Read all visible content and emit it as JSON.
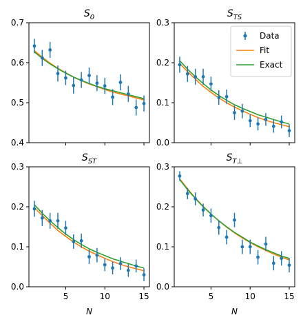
{
  "chart_data": [
    {
      "type": "scatter",
      "title": "S_0",
      "title_main": "S",
      "title_sub": "0",
      "xlabel": "",
      "ylabel": "",
      "xlim": [
        0.3,
        15.7
      ],
      "ylim": [
        0.4,
        0.7
      ],
      "yticks": [
        "0.4",
        "0.5",
        "0.6",
        "0.7"
      ],
      "xticks": [
        5,
        10,
        15
      ],
      "show_xtick_labels": false,
      "show_legend": false,
      "series": [
        {
          "name": "Data",
          "kind": "errorbar",
          "x": [
            1,
            2,
            3,
            4,
            5,
            6,
            7,
            8,
            9,
            10,
            11,
            12,
            13,
            14,
            15
          ],
          "y": [
            0.642,
            0.612,
            0.632,
            0.573,
            0.562,
            0.543,
            0.557,
            0.568,
            0.549,
            0.542,
            0.514,
            0.551,
            0.522,
            0.488,
            0.498
          ],
          "err": [
            0.018,
            0.02,
            0.02,
            0.02,
            0.018,
            0.02,
            0.02,
            0.02,
            0.02,
            0.02,
            0.02,
            0.02,
            0.02,
            0.02,
            0.02
          ]
        },
        {
          "name": "Fit",
          "kind": "line",
          "x": [
            1,
            2,
            3,
            4,
            5,
            6,
            7,
            8,
            9,
            10,
            11,
            12,
            13,
            14,
            15
          ],
          "y": [
            0.63,
            0.614,
            0.599,
            0.586,
            0.575,
            0.564,
            0.555,
            0.547,
            0.54,
            0.533,
            0.527,
            0.522,
            0.517,
            0.512,
            0.507
          ]
        },
        {
          "name": "Exact",
          "kind": "line",
          "x": [
            1,
            2,
            3,
            4,
            5,
            6,
            7,
            8,
            9,
            10,
            11,
            12,
            13,
            14,
            15
          ],
          "y": [
            0.627,
            0.611,
            0.597,
            0.585,
            0.574,
            0.564,
            0.556,
            0.548,
            0.541,
            0.535,
            0.53,
            0.525,
            0.52,
            0.515,
            0.51
          ]
        }
      ]
    },
    {
      "type": "scatter",
      "title": "S_TS",
      "title_main": "S",
      "title_sub": "TS",
      "xlabel": "",
      "ylabel": "",
      "xlim": [
        0.3,
        15.7
      ],
      "ylim": [
        0.0,
        0.3
      ],
      "yticks": [
        "0.0",
        "0.1",
        "0.2",
        "0.3"
      ],
      "xticks": [
        5,
        10,
        15
      ],
      "show_xtick_labels": false,
      "show_legend": true,
      "series": [
        {
          "name": "Data",
          "kind": "errorbar",
          "x": [
            1,
            2,
            3,
            4,
            5,
            6,
            7,
            8,
            9,
            10,
            11,
            12,
            13,
            14,
            15
          ],
          "y": [
            0.195,
            0.172,
            0.165,
            0.165,
            0.147,
            0.113,
            0.115,
            0.075,
            0.079,
            0.055,
            0.047,
            0.058,
            0.041,
            0.052,
            0.03
          ],
          "err": [
            0.02,
            0.02,
            0.02,
            0.02,
            0.018,
            0.018,
            0.018,
            0.018,
            0.018,
            0.016,
            0.016,
            0.016,
            0.016,
            0.016,
            0.016
          ]
        },
        {
          "name": "Fit",
          "kind": "line",
          "x": [
            1,
            2,
            3,
            4,
            5,
            6,
            7,
            8,
            9,
            10,
            11,
            12,
            13,
            14,
            15
          ],
          "y": [
            0.198,
            0.178,
            0.159,
            0.141,
            0.126,
            0.112,
            0.1,
            0.089,
            0.08,
            0.071,
            0.063,
            0.056,
            0.05,
            0.045,
            0.04
          ]
        },
        {
          "name": "Exact",
          "kind": "line",
          "x": [
            1,
            2,
            3,
            4,
            5,
            6,
            7,
            8,
            9,
            10,
            11,
            12,
            13,
            14,
            15
          ],
          "y": [
            0.205,
            0.184,
            0.165,
            0.148,
            0.132,
            0.118,
            0.106,
            0.095,
            0.086,
            0.078,
            0.07,
            0.064,
            0.058,
            0.052,
            0.047
          ]
        }
      ]
    },
    {
      "type": "scatter",
      "title": "S_ST",
      "title_main": "S",
      "title_sub": "ST",
      "xlabel": "N",
      "ylabel": "",
      "xlim": [
        0.3,
        15.7
      ],
      "ylim": [
        0.0,
        0.3
      ],
      "yticks": [
        "0.0",
        "0.1",
        "0.2",
        "0.3"
      ],
      "xticks": [
        5,
        10,
        15
      ],
      "show_xtick_labels": true,
      "show_legend": false,
      "series": [
        {
          "name": "Data",
          "kind": "errorbar",
          "x": [
            1,
            2,
            3,
            4,
            5,
            6,
            7,
            8,
            9,
            10,
            11,
            12,
            13,
            14,
            15
          ],
          "y": [
            0.195,
            0.172,
            0.165,
            0.165,
            0.147,
            0.113,
            0.115,
            0.075,
            0.079,
            0.055,
            0.047,
            0.058,
            0.041,
            0.052,
            0.03
          ],
          "err": [
            0.02,
            0.02,
            0.02,
            0.02,
            0.018,
            0.018,
            0.018,
            0.018,
            0.018,
            0.016,
            0.016,
            0.016,
            0.016,
            0.016,
            0.016
          ]
        },
        {
          "name": "Fit",
          "kind": "line",
          "x": [
            1,
            2,
            3,
            4,
            5,
            6,
            7,
            8,
            9,
            10,
            11,
            12,
            13,
            14,
            15
          ],
          "y": [
            0.198,
            0.178,
            0.159,
            0.141,
            0.126,
            0.112,
            0.1,
            0.089,
            0.08,
            0.071,
            0.063,
            0.056,
            0.05,
            0.045,
            0.04
          ]
        },
        {
          "name": "Exact",
          "kind": "line",
          "x": [
            1,
            2,
            3,
            4,
            5,
            6,
            7,
            8,
            9,
            10,
            11,
            12,
            13,
            14,
            15
          ],
          "y": [
            0.205,
            0.184,
            0.165,
            0.148,
            0.132,
            0.118,
            0.106,
            0.095,
            0.086,
            0.078,
            0.07,
            0.064,
            0.058,
            0.052,
            0.047
          ]
        }
      ]
    },
    {
      "type": "scatter",
      "title": "S_T⊥",
      "title_main": "S",
      "title_sub": "T⊥",
      "xlabel": "N",
      "ylabel": "",
      "xlim": [
        0.3,
        15.7
      ],
      "ylim": [
        0.0,
        0.3
      ],
      "yticks": [
        "0.0",
        "0.1",
        "0.2",
        "0.3"
      ],
      "xticks": [
        5,
        10,
        15
      ],
      "show_xtick_labels": true,
      "show_legend": false,
      "series": [
        {
          "name": "Data",
          "kind": "errorbar",
          "x": [
            1,
            2,
            3,
            4,
            5,
            6,
            7,
            8,
            9,
            10,
            11,
            12,
            13,
            14,
            15
          ],
          "y": [
            0.277,
            0.233,
            0.22,
            0.192,
            0.178,
            0.148,
            0.124,
            0.167,
            0.1,
            0.1,
            0.074,
            0.107,
            0.059,
            0.071,
            0.054
          ],
          "err": [
            0.012,
            0.014,
            0.016,
            0.016,
            0.018,
            0.018,
            0.018,
            0.018,
            0.018,
            0.018,
            0.018,
            0.018,
            0.018,
            0.018,
            0.018
          ]
        },
        {
          "name": "Fit",
          "kind": "line",
          "x": [
            1,
            2,
            3,
            4,
            5,
            6,
            7,
            8,
            9,
            10,
            11,
            12,
            13,
            14,
            15
          ],
          "y": [
            0.27,
            0.245,
            0.222,
            0.201,
            0.182,
            0.165,
            0.149,
            0.135,
            0.122,
            0.111,
            0.1,
            0.091,
            0.082,
            0.074,
            0.067
          ]
        },
        {
          "name": "Exact",
          "kind": "line",
          "x": [
            1,
            2,
            3,
            4,
            5,
            6,
            7,
            8,
            9,
            10,
            11,
            12,
            13,
            14,
            15
          ],
          "y": [
            0.268,
            0.243,
            0.221,
            0.2,
            0.182,
            0.165,
            0.15,
            0.136,
            0.124,
            0.112,
            0.102,
            0.093,
            0.085,
            0.077,
            0.071
          ]
        }
      ]
    }
  ],
  "legend": {
    "items": [
      {
        "label": "Data",
        "kind": "errorbar"
      },
      {
        "label": "Fit",
        "kind": "line"
      },
      {
        "label": "Exact",
        "kind": "line"
      }
    ]
  },
  "colors": {
    "Data": "#1f77b4",
    "Fit": "#ff7f0e",
    "Exact": "#2ca02c",
    "axes": "#000000",
    "background": "#ffffff"
  }
}
